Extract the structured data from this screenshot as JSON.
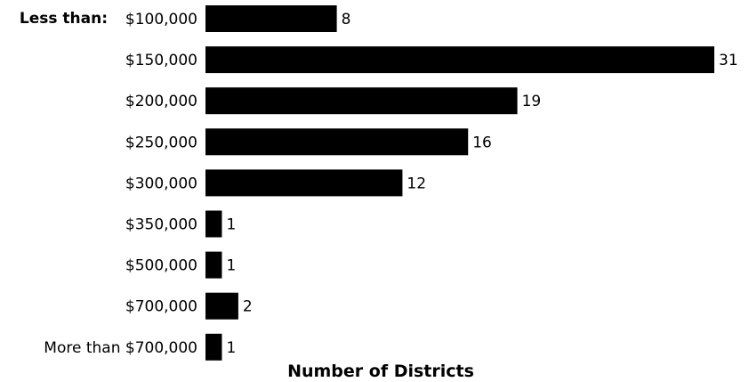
{
  "chart_data": {
    "type": "bar",
    "orientation": "horizontal",
    "prefix_label": "Less than:",
    "categories": [
      "$100,000",
      "$150,000",
      "$200,000",
      "$250,000",
      "$300,000",
      "$350,000",
      "$500,000",
      "$700,000",
      "More than $700,000"
    ],
    "values": [
      8,
      31,
      19,
      16,
      12,
      1,
      1,
      2,
      1
    ],
    "xlabel": "Number of Districts",
    "ylabel": "",
    "xlim": [
      0,
      31
    ],
    "grid": false,
    "legend": "none",
    "data_labels": true,
    "bar_color": "#000000"
  }
}
